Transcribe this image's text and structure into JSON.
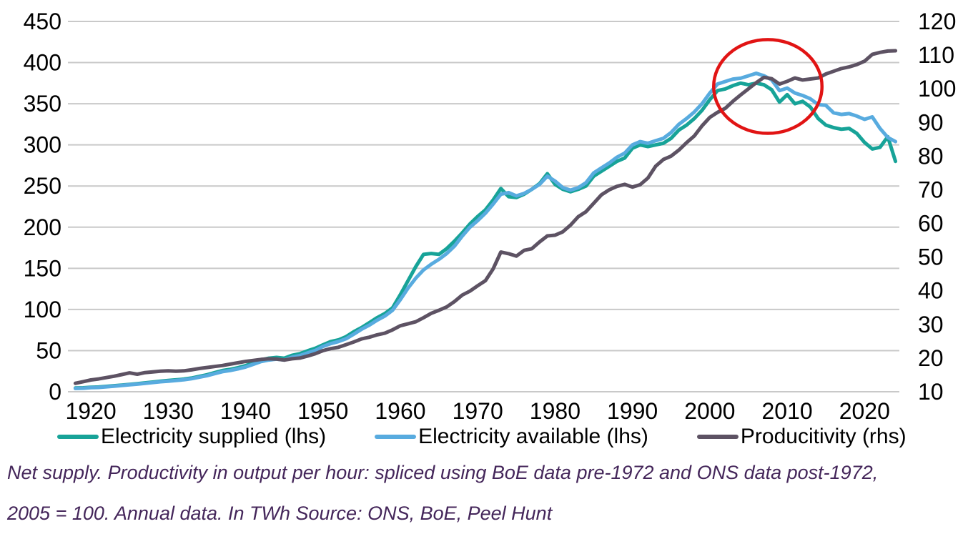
{
  "caption": {
    "color": "#44265a",
    "line1": "Net supply. Productivity in output per hour: spliced using BoE data pre-1972 and ONS data post-1972,",
    "line2": "2005 = 100. Annual data. In TWh Source: ONS, BoE, Peel Hunt"
  },
  "chart_data": {
    "type": "line",
    "title": "",
    "xlabel": "",
    "ylabel_left": "",
    "ylabel_right": "",
    "grid": "horizontal",
    "gridline_color": "#c9c9c9",
    "legend_position": "bottom",
    "axes": {
      "x": {
        "range": [
          1917.5,
          2024.5
        ],
        "ticks": [
          1920,
          1930,
          1940,
          1950,
          1960,
          1970,
          1980,
          1990,
          2000,
          2010,
          2020
        ]
      },
      "left": {
        "range": [
          0,
          450
        ],
        "ticks": [
          0,
          50,
          100,
          150,
          200,
          250,
          300,
          350,
          400,
          450
        ]
      },
      "right": {
        "range": [
          10,
          120
        ],
        "ticks": [
          10,
          20,
          30,
          40,
          50,
          60,
          70,
          80,
          90,
          100,
          110,
          120
        ]
      }
    },
    "years": [
      1918,
      1919,
      1920,
      1921,
      1922,
      1923,
      1924,
      1925,
      1926,
      1927,
      1928,
      1929,
      1930,
      1931,
      1932,
      1933,
      1934,
      1935,
      1936,
      1937,
      1938,
      1939,
      1940,
      1941,
      1942,
      1943,
      1944,
      1945,
      1946,
      1947,
      1948,
      1949,
      1950,
      1951,
      1952,
      1953,
      1954,
      1955,
      1956,
      1957,
      1958,
      1959,
      1960,
      1961,
      1962,
      1963,
      1964,
      1965,
      1966,
      1967,
      1968,
      1969,
      1970,
      1971,
      1972,
      1973,
      1974,
      1975,
      1976,
      1977,
      1978,
      1979,
      1980,
      1981,
      1982,
      1983,
      1984,
      1985,
      1986,
      1987,
      1988,
      1989,
      1990,
      1991,
      1992,
      1993,
      1994,
      1995,
      1996,
      1997,
      1998,
      1999,
      2000,
      2001,
      2002,
      2003,
      2004,
      2005,
      2006,
      2007,
      2008,
      2009,
      2010,
      2011,
      2012,
      2013,
      2014,
      2015,
      2016,
      2017,
      2018,
      2019,
      2020,
      2021,
      2022,
      2023,
      2024
    ],
    "series": [
      {
        "name": "Electricity supplied (lhs)",
        "axis": "left",
        "color": "#17a398",
        "values": [
          4.5,
          4.8,
          5.5,
          5.7,
          6.5,
          7.3,
          8.1,
          8.9,
          9.7,
          10.8,
          11.7,
          12.9,
          13.6,
          14.4,
          15.3,
          16.6,
          18.6,
          20.6,
          23.2,
          25.7,
          27.2,
          29.2,
          31.7,
          35.2,
          38.7,
          40.7,
          41.7,
          40.7,
          44.2,
          46.2,
          49.7,
          52.7,
          57,
          61,
          63,
          67,
          73,
          78,
          84,
          90,
          95,
          102,
          118,
          135,
          152,
          167,
          168,
          167,
          174,
          183,
          193,
          204,
          213,
          221,
          233,
          247,
          237,
          236,
          240,
          246,
          253,
          265,
          252,
          246,
          243,
          246,
          250,
          262,
          268,
          274,
          280,
          284,
          296,
          300,
          298,
          300,
          302,
          308,
          318,
          324,
          332,
          342,
          355,
          366,
          368,
          372,
          375,
          373,
          375,
          373,
          367,
          352,
          361,
          350,
          353,
          346,
          332,
          324,
          321,
          319,
          320,
          314,
          303,
          295,
          297,
          310,
          280
        ]
      },
      {
        "name": "Electricity available (lhs)",
        "axis": "left",
        "color": "#58abdf",
        "values": [
          4.0,
          4.3,
          5.0,
          5.2,
          6.0,
          6.8,
          7.6,
          8.4,
          9.2,
          10.2,
          11.1,
          12.2,
          12.9,
          13.7,
          14.5,
          15.8,
          17.6,
          19.5,
          22.0,
          24.4,
          25.8,
          27.7,
          30.1,
          33.4,
          36.7,
          38.6,
          39.6,
          38.6,
          42.0,
          43.9,
          47.2,
          50.1,
          55,
          58.5,
          61,
          64.5,
          70,
          76,
          81,
          87,
          92,
          99,
          112,
          126,
          138,
          148,
          155,
          161,
          168,
          177,
          189,
          200,
          208,
          217,
          228,
          240,
          242,
          238,
          241,
          246,
          252,
          262,
          256,
          248,
          245,
          248,
          254,
          266,
          272,
          278,
          285,
          290,
          300,
          304,
          302,
          305,
          308,
          315,
          325,
          332,
          340,
          350,
          363,
          374,
          377,
          380,
          381,
          384,
          387,
          384,
          379,
          366,
          369,
          363,
          360,
          356,
          349,
          348,
          339,
          337,
          338,
          335,
          331,
          334,
          320,
          309,
          304
        ]
      },
      {
        "name": "Producitivity (rhs)",
        "axis": "right",
        "color": "#5d5263",
        "values": [
          12.5,
          13.0,
          13.5,
          13.8,
          14.2,
          14.6,
          15.1,
          15.6,
          15.2,
          15.7,
          15.9,
          16.1,
          16.2,
          16.1,
          16.2,
          16.5,
          16.9,
          17.2,
          17.5,
          17.8,
          18.2,
          18.6,
          19.0,
          19.3,
          19.6,
          19.8,
          19.7,
          19.4,
          19.8,
          20.0,
          20.6,
          21.3,
          22.2,
          22.8,
          23.2,
          24.0,
          24.8,
          25.7,
          26.2,
          26.9,
          27.4,
          28.4,
          29.6,
          30.2,
          30.8,
          32.0,
          33.3,
          34.2,
          35.2,
          36.8,
          38.7,
          39.9,
          41.5,
          43.0,
          46.5,
          51.5,
          51.0,
          50.3,
          52.0,
          52.5,
          54.5,
          56.3,
          56.5,
          57.5,
          59.5,
          62.0,
          63.5,
          66.0,
          68.5,
          70.0,
          71.0,
          71.6,
          70.8,
          71.5,
          73.5,
          77.0,
          79.0,
          80.0,
          81.8,
          84.0,
          86.0,
          89.0,
          91.5,
          93.0,
          94.2,
          96.3,
          98.2,
          100.0,
          101.8,
          103.4,
          103.0,
          101.4,
          102.2,
          103.2,
          102.6,
          102.9,
          103.2,
          104.4,
          105.2,
          106.0,
          106.5,
          107.2,
          108.2,
          110.2,
          110.8,
          111.2,
          111.3
        ]
      }
    ],
    "annotation": {
      "shape": "ellipse",
      "color": "#e11414",
      "center_year": 2007.5,
      "center_value_lhs": 371,
      "radius_years": 7,
      "radius_lhs": 57
    }
  }
}
